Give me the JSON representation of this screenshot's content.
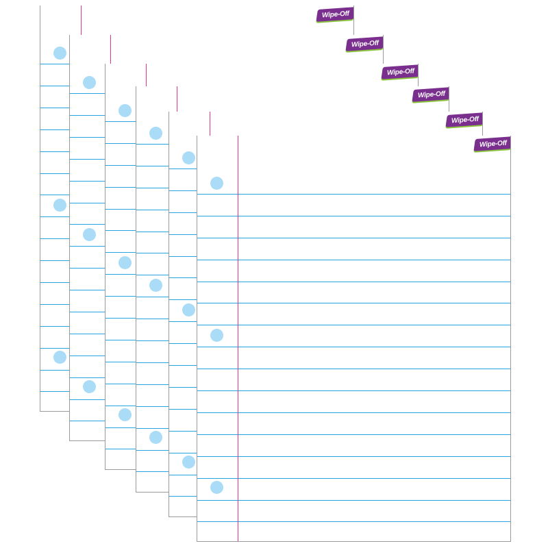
{
  "product": {
    "badge_label": "Wipe-Off"
  },
  "colors": {
    "rule_line": "#29a3dd",
    "margin_line": "#e8338a",
    "hole": "#aadcf7",
    "badge_bg": "#7a2f8f",
    "badge_accent": "#8cc63f",
    "sheet_border": "#9a9a9a"
  },
  "sheets": [
    {
      "id": "sheet-1"
    },
    {
      "id": "sheet-2"
    },
    {
      "id": "sheet-3"
    },
    {
      "id": "sheet-4"
    },
    {
      "id": "sheet-5"
    },
    {
      "id": "sheet-6"
    }
  ]
}
